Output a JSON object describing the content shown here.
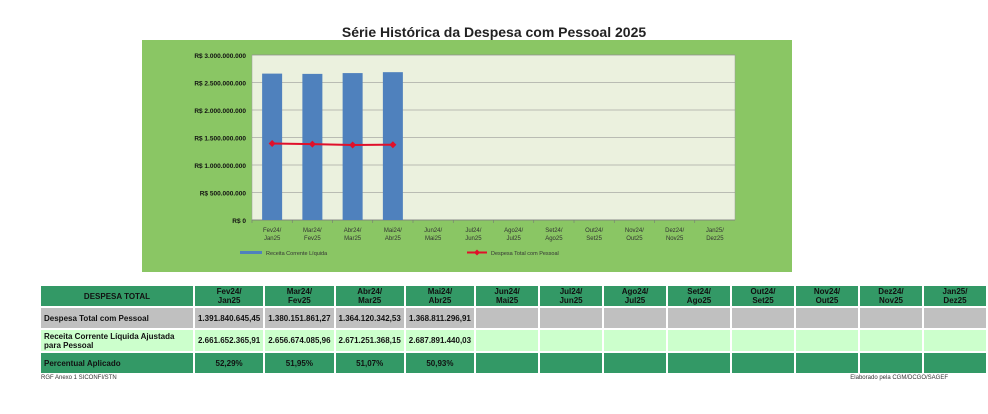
{
  "chart_data": {
    "type": "bar",
    "title": "Série Histórica da Despesa com Pessoal 2025",
    "categories": [
      "Fev24/\nJan25",
      "Mar24/\nFev25",
      "Abr24/\nMar25",
      "Mai24/\nAbr25",
      "Jun24/\nMai25",
      "Jul24/\nJun25",
      "Ago24/\nJul25",
      "Set24/\nAgo25",
      "Out24/\nSet25",
      "Nov24/\nOut25",
      "Dez24/\nNov25",
      "Jan25/\nDez25"
    ],
    "series": [
      {
        "name": "Receita Corrente Líquida",
        "type": "bar",
        "color": "#4f81bd",
        "values": [
          2661652365.91,
          2656674085.96,
          2671251368.15,
          2687891440.03,
          null,
          null,
          null,
          null,
          null,
          null,
          null,
          null
        ]
      },
      {
        "name": "Despesa Total com Pessoal",
        "type": "line",
        "color": "#e0102a",
        "values": [
          1391840645.45,
          1380151861.27,
          1364120342.53,
          1368811296.91,
          null,
          null,
          null,
          null,
          null,
          null,
          null,
          null
        ]
      }
    ],
    "ylim": [
      0,
      3000000000
    ],
    "yticks": [
      "R$ 0",
      "R$ 500.000.000",
      "R$ 1.000.000.000",
      "R$ 1.500.000.000",
      "R$ 2.000.000.000",
      "R$ 2.500.000.000",
      "R$ 3.000.000.000"
    ],
    "grid": true,
    "legend": "bottom"
  },
  "table": {
    "header": "DESPESA TOTAL",
    "columns": [
      [
        "Fev24/",
        "Jan25"
      ],
      [
        "Mar24/",
        "Fev25"
      ],
      [
        "Abr24/",
        "Mar25"
      ],
      [
        "Mai24/",
        "Abr25"
      ],
      [
        "Jun24/",
        "Mai25"
      ],
      [
        "Jul24/",
        "Jun25"
      ],
      [
        "Ago24/",
        "Jul25"
      ],
      [
        "Set24/",
        "Ago25"
      ],
      [
        "Out24/",
        "Set25"
      ],
      [
        "Nov24/",
        "Out25"
      ],
      [
        "Dez24/",
        "Nov25"
      ],
      [
        "Jan25/",
        "Dez25"
      ]
    ],
    "rows": [
      {
        "label": "Despesa Total com Pessoal",
        "values": [
          "1.391.840.645,45",
          "1.380.151.861,27",
          "1.364.120.342,53",
          "1.368.811.296,91",
          "",
          "",
          "",
          "",
          "",
          "",
          "",
          ""
        ]
      },
      {
        "label": "Receita Corrente Líquida Ajustada para Pessoal",
        "values": [
          "2.661.652.365,91",
          "2.656.674.085,96",
          "2.671.251.368,15",
          "2.687.891.440,03",
          "",
          "",
          "",
          "",
          "",
          "",
          "",
          ""
        ]
      },
      {
        "label": "Percentual Aplicado",
        "values": [
          "52,29%",
          "51,95%",
          "51,07%",
          "50,93%",
          "",
          "",
          "",
          "",
          "",
          "",
          "",
          ""
        ]
      }
    ]
  },
  "footer": {
    "source": "RGF Anexo 1 SICONFI/STN",
    "credit": "Elaborado pela CGM/DCGO/SAGEF"
  }
}
